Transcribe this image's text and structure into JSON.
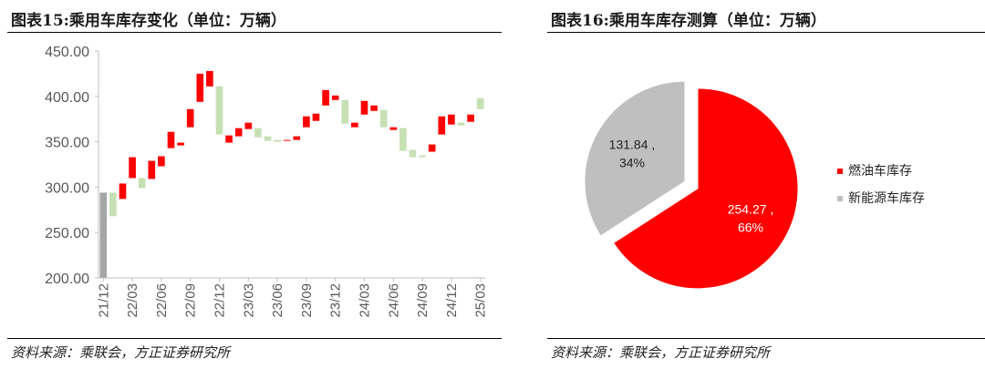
{
  "left": {
    "title": "图表15:乘用车库存变化（单位：万辆）",
    "source": "资料来源：乘联会，方正证券研究所"
  },
  "right": {
    "title": "图表16:乘用车库存测算（单位：万辆）",
    "source": "资料来源：乘联会，方正证券研究所"
  },
  "chart_data": [
    {
      "type": "bar",
      "subtype": "waterfall",
      "title": "图表15:乘用车库存变化（单位：万辆）",
      "ylim": [
        200,
        450
      ],
      "y_ticks": [
        "200.00",
        "250.00",
        "300.00",
        "350.00",
        "400.00",
        "450.00"
      ],
      "x_ticks": [
        "21/12",
        "22/03",
        "22/06",
        "22/09",
        "22/12",
        "23/03",
        "23/06",
        "23/09",
        "23/12",
        "24/03",
        "24/06",
        "24/09",
        "24/12",
        "25/03"
      ],
      "grid": false,
      "colors": {
        "increase": "#ff0000",
        "decrease": "#c6e0b4",
        "total": "#a6a6a6"
      },
      "bars": [
        {
          "low": 200,
          "high": 294,
          "kind": "total"
        },
        {
          "low": 268,
          "high": 294,
          "kind": "decrease"
        },
        {
          "low": 287,
          "high": 304,
          "kind": "increase"
        },
        {
          "low": 310,
          "high": 333,
          "kind": "increase"
        },
        {
          "low": 299,
          "high": 310,
          "kind": "decrease"
        },
        {
          "low": 309,
          "high": 329,
          "kind": "increase"
        },
        {
          "low": 323,
          "high": 334,
          "kind": "increase"
        },
        {
          "low": 343,
          "high": 361,
          "kind": "increase"
        },
        {
          "low": 346,
          "high": 349,
          "kind": "increase"
        },
        {
          "low": 366,
          "high": 386,
          "kind": "increase"
        },
        {
          "low": 394,
          "high": 425,
          "kind": "increase"
        },
        {
          "low": 411,
          "high": 428,
          "kind": "increase"
        },
        {
          "low": 358,
          "high": 411,
          "kind": "decrease"
        },
        {
          "low": 349,
          "high": 357,
          "kind": "increase"
        },
        {
          "low": 356,
          "high": 365,
          "kind": "increase"
        },
        {
          "low": 364,
          "high": 371,
          "kind": "increase"
        },
        {
          "low": 355,
          "high": 365,
          "kind": "decrease"
        },
        {
          "low": 351,
          "high": 356,
          "kind": "decrease"
        },
        {
          "low": 350,
          "high": 352,
          "kind": "decrease"
        },
        {
          "low": 351,
          "high": 352,
          "kind": "increase"
        },
        {
          "low": 352,
          "high": 356,
          "kind": "increase"
        },
        {
          "low": 366,
          "high": 378,
          "kind": "increase"
        },
        {
          "low": 373,
          "high": 381,
          "kind": "increase"
        },
        {
          "low": 390,
          "high": 407,
          "kind": "increase"
        },
        {
          "low": 396,
          "high": 401,
          "kind": "increase"
        },
        {
          "low": 370,
          "high": 396,
          "kind": "decrease"
        },
        {
          "low": 366,
          "high": 371,
          "kind": "increase"
        },
        {
          "low": 380,
          "high": 395,
          "kind": "increase"
        },
        {
          "low": 384,
          "high": 390,
          "kind": "increase"
        },
        {
          "low": 366,
          "high": 385,
          "kind": "decrease"
        },
        {
          "low": 363,
          "high": 366,
          "kind": "increase"
        },
        {
          "low": 340,
          "high": 365,
          "kind": "decrease"
        },
        {
          "low": 333,
          "high": 341,
          "kind": "decrease"
        },
        {
          "low": 333,
          "high": 335,
          "kind": "decrease"
        },
        {
          "low": 339,
          "high": 347,
          "kind": "increase"
        },
        {
          "low": 358,
          "high": 378,
          "kind": "increase"
        },
        {
          "low": 369,
          "high": 380,
          "kind": "increase"
        },
        {
          "low": 368,
          "high": 371,
          "kind": "decrease"
        },
        {
          "low": 372,
          "high": 380,
          "kind": "increase"
        },
        {
          "low": 386,
          "high": 398,
          "kind": "decrease"
        }
      ]
    },
    {
      "type": "pie",
      "title": "图表16:乘用车库存测算（单位：万辆）",
      "slices": [
        {
          "name": "燃油车库存",
          "value": 254.27,
          "value_label": "254.27 ,",
          "pct_label": "66%",
          "color": "#ff0000"
        },
        {
          "name": "新能源车库存",
          "value": 131.84,
          "value_label": "131.84 ,",
          "pct_label": "34%",
          "color": "#bfbfbf"
        }
      ],
      "legend_position": "right"
    }
  ]
}
